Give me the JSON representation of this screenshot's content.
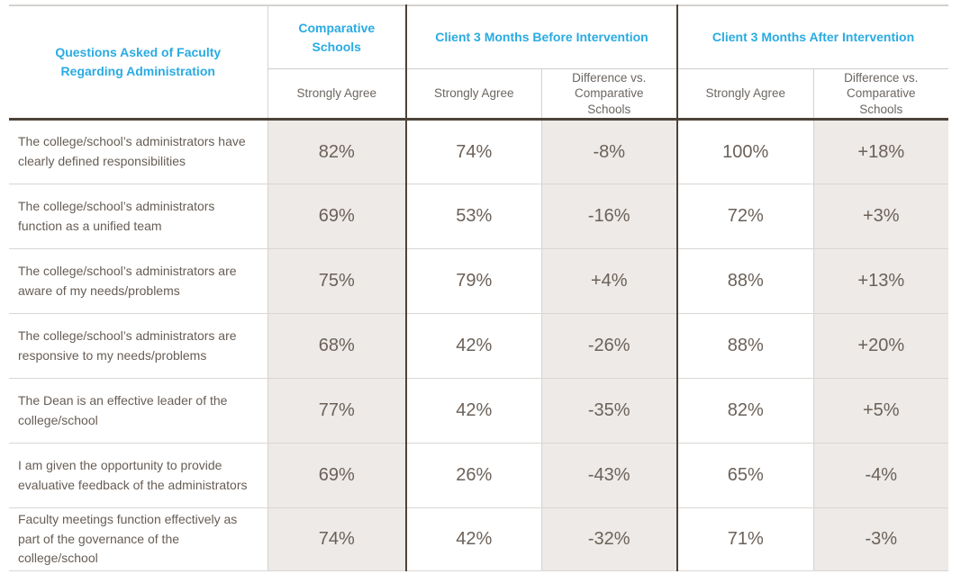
{
  "colors": {
    "accent_blue": "#29abe2",
    "dark_border": "#4d4239",
    "shaded_cell_bg": "#edeae7",
    "light_border": "#d9d7d4",
    "body_text": "#6b6159"
  },
  "table": {
    "question_header": "Questions Asked of Faculty Regarding Administration",
    "groups": [
      {
        "label": "Comparative Schools"
      },
      {
        "label": "Client 3 Months Before Intervention"
      },
      {
        "label": "Client 3 Months After Intervention"
      }
    ],
    "subheaders": [
      "Strongly Agree",
      "Strongly Agree",
      "Difference vs. Comparative Schools",
      "Strongly Agree",
      "Difference vs. Comparative Schools"
    ],
    "rows": [
      {
        "question": "The college/school’s administrators have clearly defined responsibilities",
        "comparative": "82%",
        "before_agree": "74%",
        "before_diff": "-8%",
        "after_agree": "100%",
        "after_diff": "+18%"
      },
      {
        "question": "The college/school’s administrators function as a unified team",
        "comparative": "69%",
        "before_agree": "53%",
        "before_diff": "-16%",
        "after_agree": "72%",
        "after_diff": "+3%"
      },
      {
        "question": "The college/school’s administrators are aware of my needs/problems",
        "comparative": "75%",
        "before_agree": "79%",
        "before_diff": "+4%",
        "after_agree": "88%",
        "after_diff": "+13%"
      },
      {
        "question": "The college/school’s administrators are responsive to my needs/problems",
        "comparative": "68%",
        "before_agree": "42%",
        "before_diff": "-26%",
        "after_agree": "88%",
        "after_diff": "+20%"
      },
      {
        "question": "The Dean is an effective leader of the college/school",
        "comparative": "77%",
        "before_agree": "42%",
        "before_diff": "-35%",
        "after_agree": "82%",
        "after_diff": "+5%"
      },
      {
        "question": "I am given the opportunity to provide evaluative feedback of the administrators",
        "comparative": "69%",
        "before_agree": "26%",
        "before_diff": "-43%",
        "after_agree": "65%",
        "after_diff": "-4%"
      },
      {
        "question": "Faculty meetings function effectively as part of the governance of the college/school",
        "comparative": "74%",
        "before_agree": "42%",
        "before_diff": "-32%",
        "after_agree": "71%",
        "after_diff": "-3%"
      }
    ]
  },
  "chart_data": {
    "type": "table",
    "title": "Questions Asked of Faculty Regarding Administration",
    "column_groups": [
      "Comparative Schools",
      "Client 3 Months Before Intervention",
      "Client 3 Months After Intervention"
    ],
    "columns": [
      "Questions Asked of Faculty Regarding Administration",
      "Comparative Schools — Strongly Agree",
      "Client 3 Months Before Intervention — Strongly Agree",
      "Client 3 Months Before Intervention — Difference vs. Comparative Schools",
      "Client 3 Months After Intervention — Strongly Agree",
      "Client 3 Months After Intervention — Difference vs. Comparative Schools"
    ],
    "rows": [
      [
        "The college/school’s administrators have clearly defined responsibilities",
        "82%",
        "74%",
        "-8%",
        "100%",
        "+18%"
      ],
      [
        "The college/school’s administrators function as a unified team",
        "69%",
        "53%",
        "-16%",
        "72%",
        "+3%"
      ],
      [
        "The college/school’s administrators are aware of my needs/problems",
        "75%",
        "79%",
        "+4%",
        "88%",
        "+13%"
      ],
      [
        "The college/school’s administrators are responsive to my needs/problems",
        "68%",
        "42%",
        "-26%",
        "88%",
        "+20%"
      ],
      [
        "The Dean is an effective leader of the college/school",
        "77%",
        "42%",
        "-35%",
        "82%",
        "+5%"
      ],
      [
        "I am given the opportunity to provide evaluative feedback of the administrators",
        "69%",
        "26%",
        "-43%",
        "65%",
        "-4%"
      ],
      [
        "Faculty meetings function effectively as part of the governance of the college/school",
        "74%",
        "42%",
        "-32%",
        "71%",
        "-3%"
      ]
    ]
  }
}
